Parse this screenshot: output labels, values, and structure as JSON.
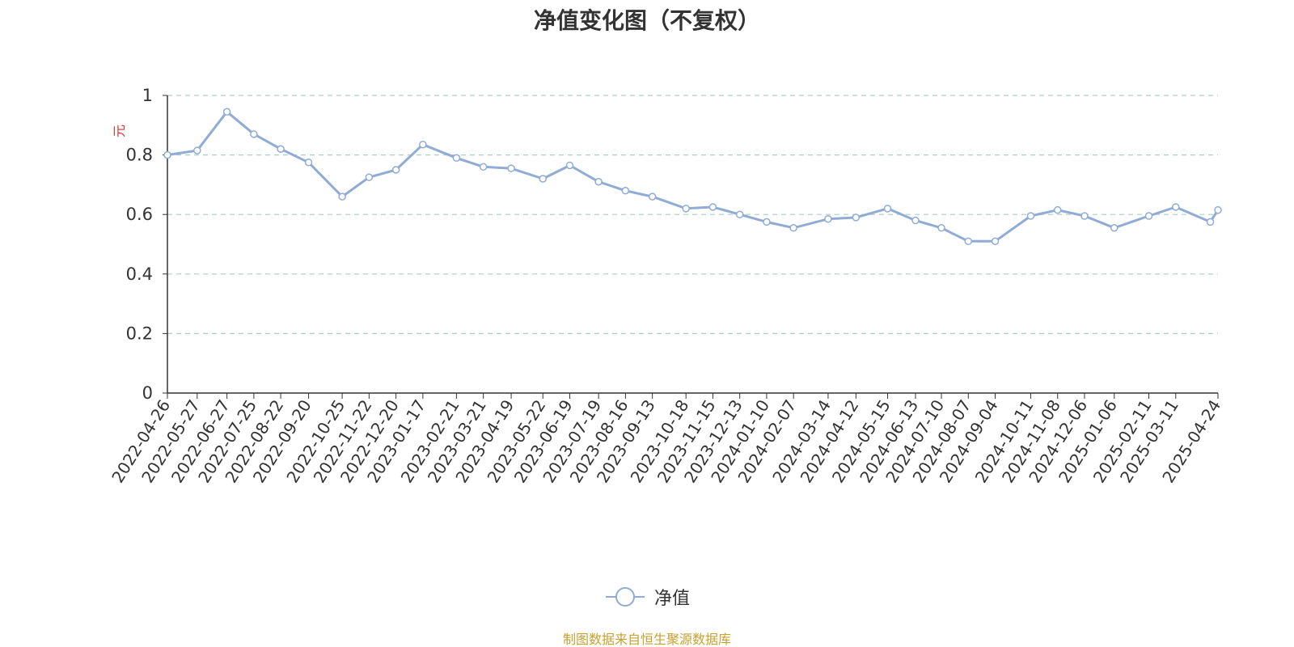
{
  "title": "净值变化图（不复权）",
  "unit": "元",
  "legend_label": "净值",
  "source": "制图数据来自恒生聚源数据库",
  "colors": {
    "line": "#8fabd6",
    "grid": "#a8d0c8",
    "axis": "#333333",
    "unit": "#e03030",
    "source": "#c8a030"
  },
  "chart_data": {
    "type": "line",
    "title": "净值变化图（不复权）",
    "xlabel": "",
    "ylabel": "元",
    "ylim": [
      0,
      1
    ],
    "yticks": [
      0,
      0.2,
      0.4,
      0.6,
      0.8,
      1
    ],
    "ytick_labels": [
      "0",
      "0.2",
      "0.4",
      "0.6",
      "0.8",
      "1"
    ],
    "grid": true,
    "legend": "bottom-center",
    "categories": [
      "2022-04-26",
      "2022-05-27",
      "2022-06-27",
      "2022-07-25",
      "2022-08-22",
      "2022-09-20",
      "2022-10-25",
      "2022-11-22",
      "2022-12-20",
      "2023-01-17",
      "2023-02-21",
      "2023-03-21",
      "2023-04-19",
      "2023-05-22",
      "2023-06-19",
      "2023-07-19",
      "2023-08-16",
      "2023-09-13",
      "2023-10-18",
      "2023-11-15",
      "2023-12-13",
      "2024-01-10",
      "2024-02-07",
      "2024-03-14",
      "2024-04-12",
      "2024-05-15",
      "2024-06-13",
      "2024-07-10",
      "2024-08-07",
      "2024-09-04",
      "2024-10-11",
      "2024-11-08",
      "2024-12-06",
      "2025-01-06",
      "2025-02-11",
      "2025-03-11",
      "2025-04-24"
    ],
    "series": [
      {
        "name": "净值",
        "x": [
          "2022-04-26",
          "2022-05-27",
          "2022-06-27",
          "2022-07-25",
          "2022-08-22",
          "2022-09-20",
          "2022-10-25",
          "2022-11-22",
          "2022-12-20",
          "2023-01-17",
          "2023-02-21",
          "2023-03-21",
          "2023-04-19",
          "2023-05-22",
          "2023-06-19",
          "2023-07-19",
          "2023-08-16",
          "2023-09-13",
          "2023-10-18",
          "2023-11-15",
          "2023-12-13",
          "2024-01-10",
          "2024-02-07",
          "2024-03-14",
          "2024-04-12",
          "2024-05-15",
          "2024-06-13",
          "2024-07-10",
          "2024-08-07",
          "2024-09-04",
          "2024-10-11",
          "2024-11-08",
          "2024-12-06",
          "2025-01-06",
          "2025-02-11",
          "2025-03-11",
          "2025-04-16",
          "2025-04-24"
        ],
        "values": [
          0.8,
          0.815,
          0.945,
          0.87,
          0.82,
          0.775,
          0.66,
          0.725,
          0.75,
          0.835,
          0.79,
          0.76,
          0.755,
          0.72,
          0.765,
          0.71,
          0.68,
          0.66,
          0.62,
          0.625,
          0.6,
          0.575,
          0.555,
          0.585,
          0.59,
          0.62,
          0.58,
          0.555,
          0.51,
          0.51,
          0.595,
          0.615,
          0.595,
          0.555,
          0.595,
          0.625,
          0.575,
          0.615
        ]
      }
    ]
  }
}
